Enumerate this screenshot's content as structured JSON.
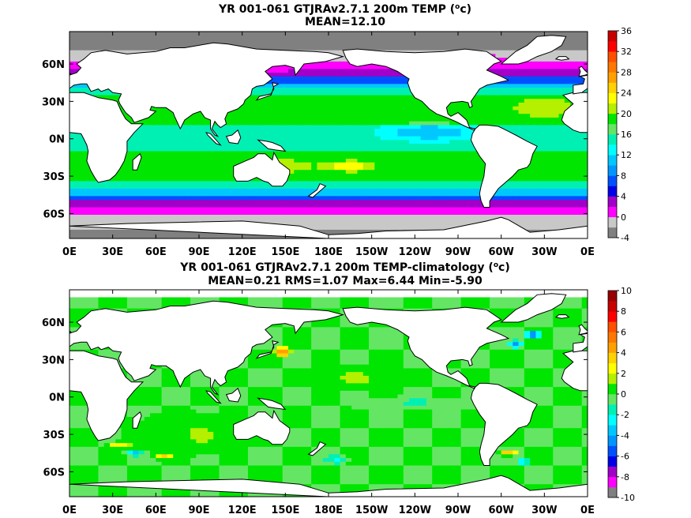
{
  "chart_data": [
    {
      "type": "heatmap",
      "title": "YR 001-061 GTJRAv2.7.1 200m TEMP (oc)",
      "title_main": "YR 001-061 GTJRAv2.7.1 200m TEMP (",
      "title_sup": "o",
      "title_tail": "c)",
      "subtitle": "MEAN=12.10",
      "x_ticks": [
        "0E",
        "30E",
        "60E",
        "90E",
        "120E",
        "150E",
        "180E",
        "150W",
        "120W",
        "90W",
        "60W",
        "30W",
        "0E"
      ],
      "y_ticks": [
        "60N",
        "30N",
        "0N",
        "30S",
        "60S"
      ],
      "y_tick_lats": [
        60,
        30,
        0,
        -30,
        -60
      ],
      "lat_range": [
        -80,
        86
      ],
      "lon_range": [
        0,
        360
      ],
      "colorbar": {
        "labels": [
          "36",
          "32",
          "28",
          "24",
          "20",
          "16",
          "12",
          "8",
          "4",
          "0",
          "-4"
        ],
        "min": -4,
        "max": 36,
        "step": 2,
        "colors": [
          "#808080",
          "#c8c8c8",
          "#ff00ff",
          "#a000c8",
          "#0000e6",
          "#0050ff",
          "#0096ff",
          "#00c8ff",
          "#00ffff",
          "#00f0b4",
          "#64e664",
          "#00e600",
          "#b4f000",
          "#ffff00",
          "#ffd200",
          "#ffa000",
          "#ff7800",
          "#ff5000",
          "#ff0000",
          "#c80000"
        ]
      },
      "mean": 12.1
    },
    {
      "type": "heatmap",
      "title": "YR 001-061 GTJRAv2.7.1 200m TEMP-climatology (oc)",
      "title_main": "YR 001-061 GTJRAv2.7.1 200m TEMP-climatology (",
      "title_sup": "o",
      "title_tail": "c)",
      "subtitle": "MEAN=0.21   RMS=1.07   Max=6.44   Min=-5.90",
      "x_ticks": [
        "0E",
        "30E",
        "60E",
        "90E",
        "120E",
        "150E",
        "180E",
        "150W",
        "120W",
        "90W",
        "60W",
        "30W",
        "0E"
      ],
      "y_ticks": [
        "60N",
        "30N",
        "0N",
        "30S",
        "60S"
      ],
      "y_tick_lats": [
        60,
        30,
        0,
        -30,
        -60
      ],
      "lat_range": [
        -80,
        86
      ],
      "lon_range": [
        0,
        360
      ],
      "colorbar": {
        "labels": [
          "10",
          "8",
          "6",
          "4",
          "2",
          "0",
          "-2",
          "-4",
          "-6",
          "-8",
          "-10"
        ],
        "min": -10,
        "max": 10,
        "step": 1,
        "colors": [
          "#808080",
          "#ff00ff",
          "#a000c8",
          "#0000e6",
          "#0050ff",
          "#0096ff",
          "#00c8ff",
          "#00ffff",
          "#00f0b4",
          "#64e664",
          "#00e600",
          "#b4f000",
          "#ffff00",
          "#ffd200",
          "#ffa000",
          "#ff7800",
          "#ff5000",
          "#ff0000",
          "#c80000",
          "#960000"
        ]
      },
      "mean": 0.21,
      "rms": 1.07,
      "max": 6.44,
      "min": -5.9
    }
  ]
}
